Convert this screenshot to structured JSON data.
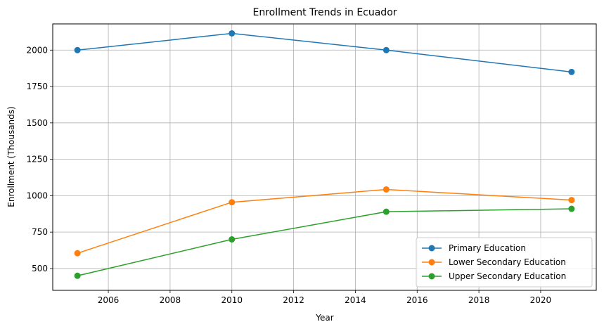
{
  "chart_data": {
    "type": "line",
    "title": "Enrollment Trends in Ecuador",
    "xlabel": "Year",
    "ylabel": "Enrollment (Thousands)",
    "xlim": [
      2004.2,
      2021.8
    ],
    "ylim": [
      350,
      2180
    ],
    "x_ticks": [
      2006,
      2008,
      2010,
      2012,
      2014,
      2016,
      2018,
      2020
    ],
    "y_ticks": [
      500,
      750,
      1000,
      1250,
      1500,
      1750,
      2000
    ],
    "grid": true,
    "legend_position": "lower-right",
    "series": [
      {
        "name": "Primary Education",
        "color": "#1f77b4",
        "x": [
          2005,
          2010,
          2015,
          2021
        ],
        "y": [
          2000,
          2115,
          2000,
          1850
        ]
      },
      {
        "name": "Lower Secondary Education",
        "color": "#ff7f0e",
        "x": [
          2005,
          2010,
          2015,
          2021
        ],
        "y": [
          605,
          955,
          1043,
          970
        ]
      },
      {
        "name": "Upper Secondary Education",
        "color": "#2ca02c",
        "x": [
          2005,
          2010,
          2015,
          2021
        ],
        "y": [
          450,
          700,
          890,
          910
        ]
      }
    ]
  }
}
